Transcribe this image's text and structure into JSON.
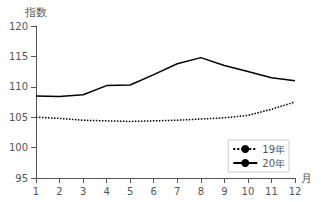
{
  "chart_data": {
    "type": "line",
    "x": [
      1,
      2,
      3,
      4,
      5,
      6,
      7,
      8,
      9,
      10,
      11,
      12
    ],
    "series": [
      {
        "name": "19年",
        "color": "#000000",
        "line_style": "dotted",
        "values": [
          105.0,
          104.8,
          104.5,
          104.4,
          104.3,
          104.4,
          104.5,
          104.7,
          104.9,
          105.3,
          106.3,
          107.5
        ]
      },
      {
        "name": "20年",
        "color": "#000000",
        "line_style": "solid",
        "values": [
          108.5,
          108.4,
          108.7,
          110.2,
          110.3,
          112.0,
          113.8,
          114.8,
          113.5,
          112.5,
          111.5,
          111.0
        ]
      }
    ],
    "xlim": [
      1,
      12
    ],
    "xticks": [
      1,
      2,
      3,
      4,
      5,
      6,
      7,
      8,
      9,
      10,
      11,
      12
    ],
    "ylim": [
      95,
      120
    ],
    "yticks": [
      95,
      100,
      105,
      110,
      115,
      120
    ],
    "xlabel": "月",
    "ylabel": "指数",
    "grid": false,
    "legend": "lower right"
  }
}
